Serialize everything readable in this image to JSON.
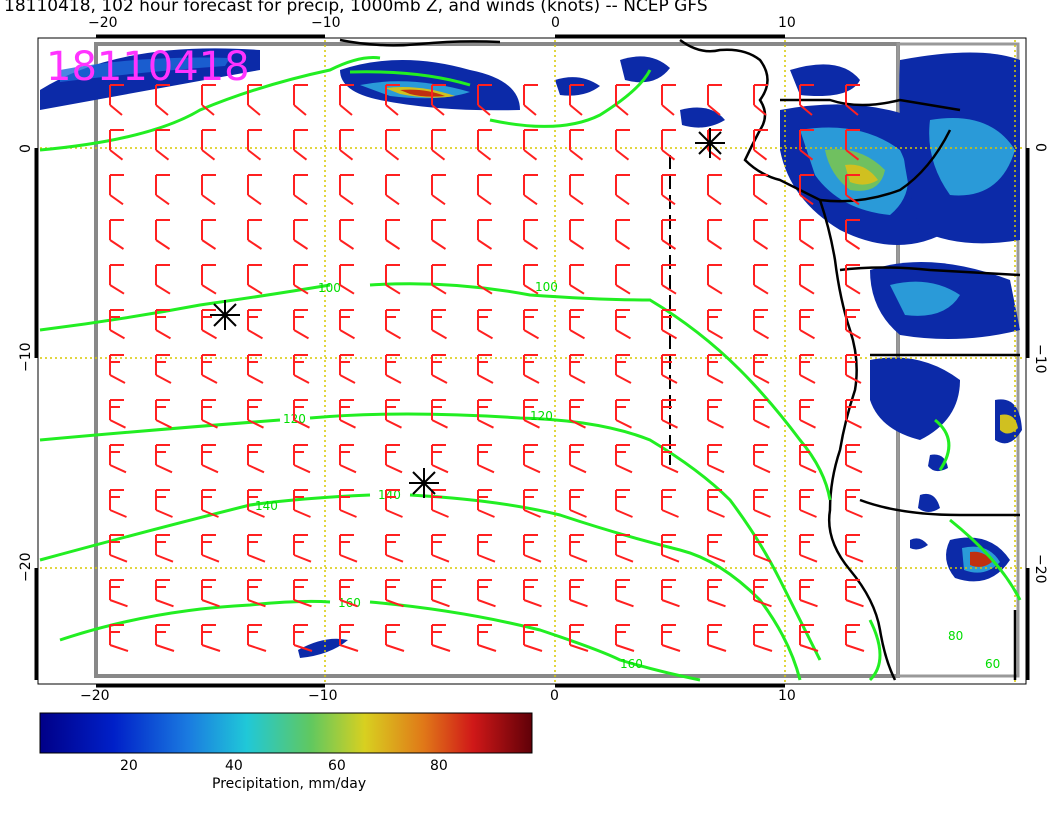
{
  "title": "18110418, 102 hour forecast for precip, 1000mb Z, and winds (knots) -- NCEP GFS",
  "stamp": "18110418",
  "axes": {
    "lon_ticks_top": [
      "−20",
      "−10",
      "0",
      "10"
    ],
    "lon_ticks_bottom": [
      "−20",
      "−10",
      "0",
      "10"
    ],
    "lat_ticks_left": [
      "0",
      "−10",
      "−20"
    ],
    "lat_ticks_right": [
      "0",
      "−10",
      "−20"
    ]
  },
  "contour_labels": [
    "100",
    "100",
    "120",
    "120",
    "140",
    "140",
    "160",
    "160",
    "80",
    "60"
  ],
  "colorbar": {
    "label": "Precipitation, mm/day",
    "ticks": [
      "20",
      "40",
      "60",
      "80"
    ],
    "range": [
      0,
      100
    ]
  },
  "colors": {
    "wind_barb": "#ff2020",
    "contour": "#22ee22",
    "grid": "#d8c800",
    "stamp": "#ff33ff"
  },
  "markers": [
    "center-marker",
    "center-marker",
    "center-marker"
  ]
}
